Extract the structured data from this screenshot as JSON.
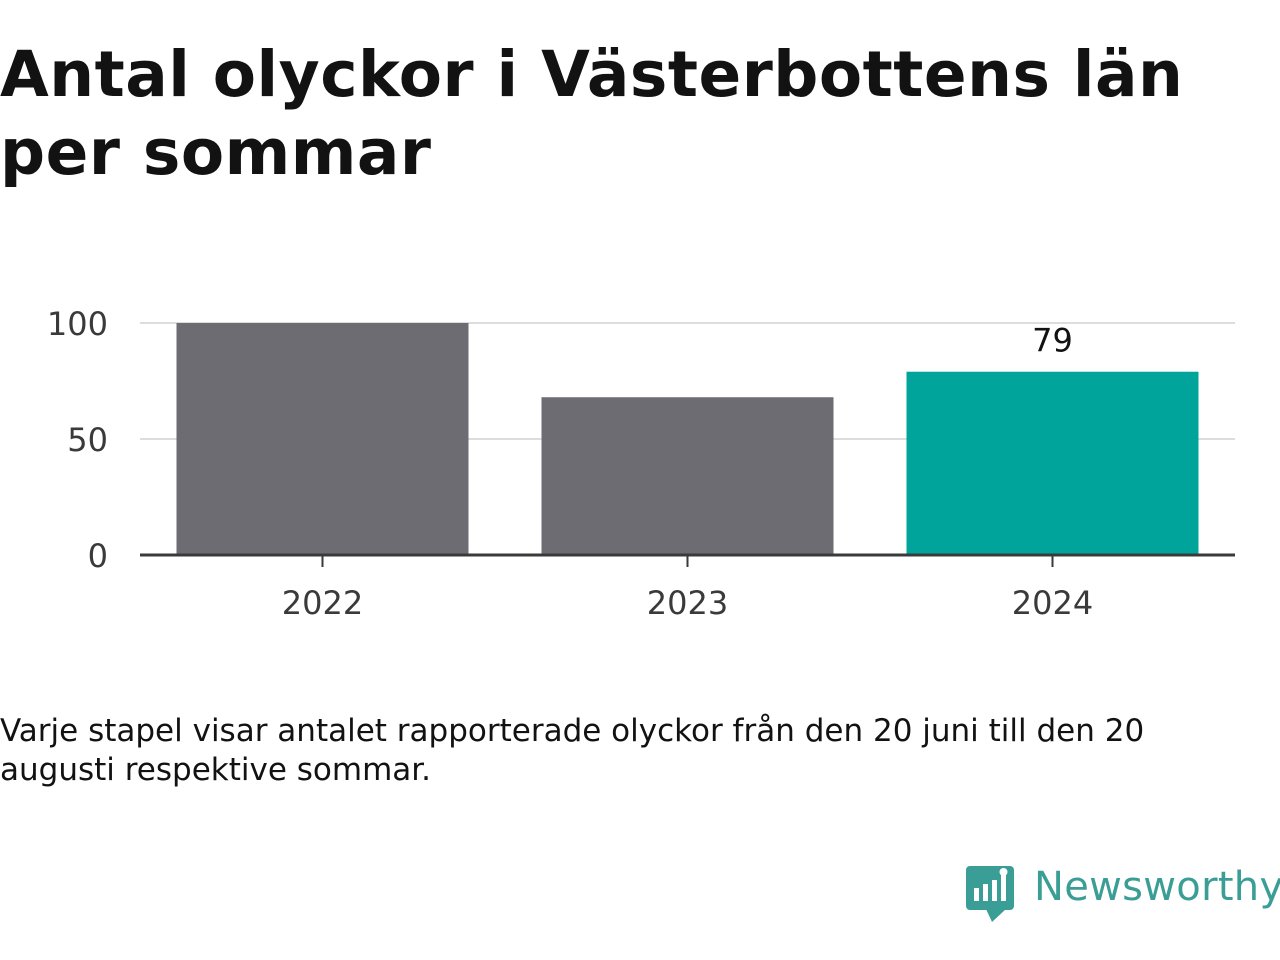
{
  "title": "Antal olyckor i Västerbottens län per sommar",
  "caption": "Varje stapel visar antalet rapporterade olyckor från den 20 juni till den 20 augusti respektive sommar.",
  "brand": {
    "name": "Newsworthy",
    "color": "#3b9e96"
  },
  "colors": {
    "bar_default": "#6d6c72",
    "bar_highlight": "#00a49a",
    "gridline": "#dddddd",
    "axis": "#3a3a3a"
  },
  "chart_data": {
    "type": "bar",
    "categories": [
      "2022",
      "2023",
      "2024"
    ],
    "values": [
      100,
      68,
      79
    ],
    "highlight_index": 2,
    "labeled_values": [
      "",
      "",
      "79"
    ],
    "yticks": [
      "0",
      "50",
      "100"
    ],
    "ylim": [
      0,
      100
    ],
    "xlabel": "",
    "ylabel": "",
    "grid": true,
    "legend": "none"
  }
}
